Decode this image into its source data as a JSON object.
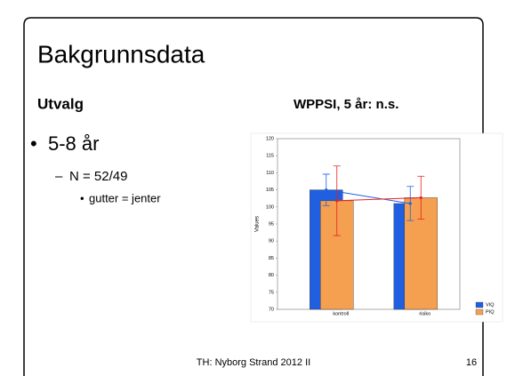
{
  "slide": {
    "title": "Bakgrunnsdata",
    "left_heading": "Utvalg",
    "right_heading": "WPPSI, 5 år: n.s.",
    "bullet": "5-8 år",
    "sub_bullet": "N = 52/49",
    "sub_sub_bullet": "gutter = jenter",
    "footer": "TH: Nyborg Strand 2012 II",
    "page_number": "16"
  },
  "chart_data": {
    "type": "bar",
    "ylabel": "Values",
    "categories": [
      "kontroll",
      "risiko"
    ],
    "series": [
      {
        "name": "VIQ",
        "color": "#1f5fe0",
        "values": [
          105,
          101
        ],
        "errors": [
          4.6,
          5
        ]
      },
      {
        "name": "PIQ",
        "color": "#f5a050",
        "values": [
          101.8,
          102.7
        ],
        "errors": [
          10.2,
          6.3
        ]
      }
    ],
    "ylim": [
      70,
      120
    ],
    "yticks": [
      70,
      75,
      80,
      85,
      90,
      95,
      100,
      105,
      110,
      115,
      120
    ],
    "legend": "bottom-right",
    "grid": false
  }
}
